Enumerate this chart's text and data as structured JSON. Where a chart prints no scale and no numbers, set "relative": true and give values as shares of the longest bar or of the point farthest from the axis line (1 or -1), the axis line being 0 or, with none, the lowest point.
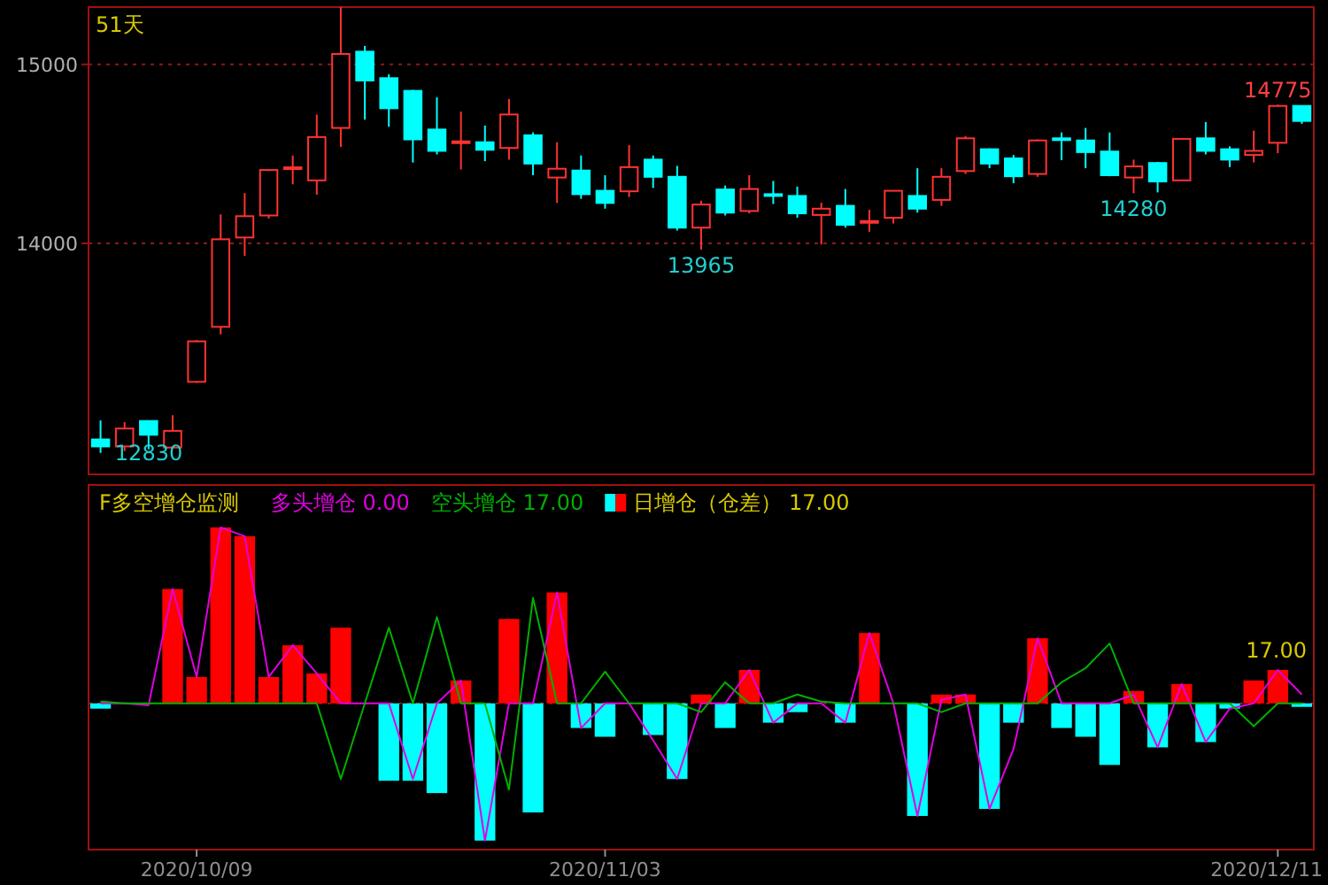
{
  "chart_data": [
    {
      "type": "candlestick",
      "categories": [
        null,
        null,
        null,
        null,
        null,
        null,
        null,
        null,
        null,
        null,
        null,
        null,
        null,
        null,
        null,
        null,
        null,
        null,
        null,
        null,
        null,
        null,
        null,
        null,
        null,
        null,
        null,
        null,
        null,
        null,
        null,
        null,
        null,
        null,
        null,
        null,
        null,
        null,
        null,
        null,
        null,
        null,
        null,
        null,
        null,
        null,
        null,
        null,
        null,
        null,
        null
      ],
      "ohlc": [
        [
          12905,
          13011,
          12830,
          12866
        ],
        [
          12866,
          13002,
          12840,
          12966
        ],
        [
          13008,
          13010,
          12850,
          12931
        ],
        [
          12860,
          13040,
          12855,
          12953
        ],
        [
          13227,
          13460,
          13220,
          13453
        ],
        [
          13534,
          14162,
          13492,
          14023
        ],
        [
          14033,
          14281,
          13930,
          14152
        ],
        [
          14156,
          14415,
          14139,
          14410
        ],
        [
          14420,
          14491,
          14330,
          14425
        ],
        [
          14352,
          14720,
          14272,
          14594
        ],
        [
          14645,
          15320,
          14539,
          15058
        ],
        [
          15071,
          15103,
          14691,
          14910
        ],
        [
          14923,
          14945,
          14652,
          14755
        ],
        [
          14852,
          14858,
          14452,
          14581
        ],
        [
          14636,
          14816,
          14497,
          14517
        ],
        [
          14565,
          14736,
          14413,
          14570
        ],
        [
          14565,
          14658,
          14459,
          14523
        ],
        [
          14533,
          14807,
          14468,
          14720
        ],
        [
          14604,
          14620,
          14381,
          14446
        ],
        [
          14368,
          14565,
          14226,
          14417
        ],
        [
          14407,
          14491,
          14249,
          14275
        ],
        [
          14294,
          14381,
          14194,
          14226
        ],
        [
          14291,
          14549,
          14259,
          14426
        ],
        [
          14468,
          14491,
          14310,
          14372
        ],
        [
          14372,
          14433,
          14072,
          14088
        ],
        [
          14088,
          14239,
          13965,
          14217
        ],
        [
          14301,
          14323,
          14156,
          14172
        ],
        [
          14181,
          14381,
          14168,
          14304
        ],
        [
          14275,
          14349,
          14220,
          14270
        ],
        [
          14265,
          14317,
          14143,
          14168
        ],
        [
          14159,
          14227,
          13994,
          14194
        ],
        [
          14210,
          14304,
          14088,
          14104
        ],
        [
          14120,
          14188,
          14065,
          14125
        ],
        [
          14143,
          14296,
          14111,
          14294
        ],
        [
          14265,
          14420,
          14172,
          14194
        ],
        [
          14243,
          14420,
          14210,
          14372
        ],
        [
          14404,
          14600,
          14388,
          14587
        ],
        [
          14526,
          14530,
          14420,
          14446
        ],
        [
          14475,
          14494,
          14336,
          14375
        ],
        [
          14388,
          14581,
          14372,
          14575
        ],
        [
          14587,
          14620,
          14465,
          14582
        ],
        [
          14575,
          14645,
          14420,
          14510
        ],
        [
          14513,
          14620,
          14375,
          14381
        ],
        [
          14368,
          14468,
          14280,
          14430
        ],
        [
          14449,
          14455,
          14285,
          14346
        ],
        [
          14352,
          14587,
          14350,
          14584
        ],
        [
          14587,
          14678,
          14497,
          14517
        ],
        [
          14526,
          14542,
          14426,
          14468
        ],
        [
          14494,
          14630,
          14452,
          14517
        ],
        [
          14562,
          14775,
          14504,
          14768
        ],
        [
          14768,
          14770,
          14668,
          14684
        ]
      ],
      "colors": [
        "#00ffff",
        "#ff3232",
        "#00ffff",
        "#ff3232",
        "#ff3232",
        "#ff3232",
        "#ff3232",
        "#ff3232",
        "#ff3232",
        "#ff3232",
        "#ff3232",
        "#00ffff",
        "#00ffff",
        "#00ffff",
        "#00ffff",
        "#ff3232",
        "#00ffff",
        "#ff3232",
        "#00ffff",
        "#ff3232",
        "#00ffff",
        "#00ffff",
        "#ff3232",
        "#00ffff",
        "#00ffff",
        "#ff3232",
        "#00ffff",
        "#ff3232",
        "#00ffff",
        "#00ffff",
        "#ff3232",
        "#00ffff",
        "#ff3232",
        "#ff3232",
        "#00ffff",
        "#ff3232",
        "#ff3232",
        "#00ffff",
        "#00ffff",
        "#ff3232",
        "#00ffff",
        "#00ffff",
        "#00ffff",
        "#ff3232",
        "#00ffff",
        "#ff3232",
        "#00ffff",
        "#00ffff",
        "#ff3232",
        "#ff3232",
        "#00ffff"
      ],
      "ylim": [
        12710,
        15320
      ],
      "yticks": [
        14000,
        15000
      ],
      "grid": "y",
      "tick_labels": "y",
      "annotations": [
        {
          "text": "14775",
          "y": 14775
        },
        {
          "text": "13965",
          "y": 13965
        },
        {
          "text": "14280",
          "y": 14280
        },
        {
          "text": "12830",
          "y": 12830
        },
        "51天"
      ]
    },
    {
      "type": "bar",
      "title": "F多空增仓监测",
      "relative": true,
      "legend": "top left",
      "categories": [
        null,
        null,
        null,
        null,
        "2020/10/09",
        null,
        null,
        null,
        null,
        null,
        null,
        null,
        null,
        null,
        null,
        null,
        null,
        null,
        null,
        null,
        null,
        "2020/11/03",
        null,
        null,
        null,
        null,
        null,
        null,
        null,
        null,
        null,
        null,
        null,
        null,
        null,
        null,
        null,
        null,
        null,
        null,
        null,
        null,
        null,
        null,
        null,
        null,
        null,
        null,
        null,
        "2020/12/11",
        null
      ],
      "series": [
        {
          "type": "line",
          "name": "多头增仓 0.00",
          "color": "#e000e0",
          "values": [
            0,
            0,
            -0.01,
            0.65,
            0.15,
            1.0,
            0.95,
            0.15,
            0.33,
            0.17,
            0,
            0,
            0,
            -0.43,
            0,
            0.13,
            -0.78,
            0,
            0,
            0.63,
            -0.14,
            0,
            0,
            -0.21,
            -0.43,
            0,
            0,
            0.19,
            -0.11,
            0,
            0,
            -0.11,
            0.4,
            0,
            -0.64,
            0.02,
            0.05,
            -0.6,
            -0.26,
            0.37,
            0,
            0,
            0,
            0.05,
            -0.25,
            0.11,
            -0.22,
            -0.03,
            0,
            0.19,
            0.05
          ]
        },
        {
          "type": "line",
          "name": "空头增仓 17.00",
          "color": "#00b000",
          "values": [
            0.01,
            0,
            0,
            0,
            0,
            0,
            0,
            0,
            0,
            0,
            -0.43,
            0,
            0.43,
            0,
            0.49,
            0,
            0,
            -0.49,
            0.6,
            0,
            0,
            0.18,
            0,
            0,
            0,
            -0.05,
            0.12,
            0,
            0,
            0.05,
            0.01,
            0,
            0,
            0,
            0,
            -0.05,
            0,
            0,
            0,
            0,
            0.12,
            0.2,
            0.34,
            0,
            0,
            0,
            0,
            0,
            -0.13,
            0,
            0
          ]
        },
        {
          "type": "bar",
          "name": "日增仓（仓差） 17.00",
          "colors": [
            "#00ffff",
            "#ff0000",
            "#00ffff",
            "#ff0000",
            "#ff0000",
            "#ff0000",
            "#ff0000",
            "#ff0000",
            "#ff0000",
            "#ff0000",
            "#ff0000",
            "#ff0000",
            "#00ffff",
            "#00ffff",
            "#00ffff",
            "#ff0000",
            "#00ffff",
            "#ff0000",
            "#00ffff",
            "#ff0000",
            "#00ffff",
            "#00ffff",
            "#ff0000",
            "#00ffff",
            "#00ffff",
            "#ff0000",
            "#00ffff",
            "#ff0000",
            "#00ffff",
            "#00ffff",
            "#ff0000",
            "#00ffff",
            "#ff0000",
            "#ff0000",
            "#00ffff",
            "#ff0000",
            "#ff0000",
            "#00ffff",
            "#00ffff",
            "#ff0000",
            "#00ffff",
            "#00ffff",
            "#00ffff",
            "#ff0000",
            "#00ffff",
            "#ff0000",
            "#00ffff",
            "#00ffff",
            "#ff0000",
            "#ff0000",
            "#00ffff"
          ],
          "values": [
            -0.03,
            0,
            null,
            0.65,
            0.15,
            1.0,
            0.95,
            0.15,
            0.33,
            0.17,
            0.43,
            0,
            -0.44,
            -0.44,
            -0.51,
            0.13,
            -0.78,
            0.48,
            -0.62,
            0.63,
            -0.14,
            -0.19,
            null,
            -0.18,
            -0.43,
            0.05,
            -0.14,
            0.19,
            -0.11,
            -0.05,
            0,
            -0.11,
            0.4,
            0,
            -0.64,
            0.05,
            0.05,
            -0.6,
            -0.11,
            0.37,
            -0.14,
            -0.19,
            -0.35,
            0.07,
            -0.25,
            0.11,
            -0.22,
            -0.03,
            0.13,
            0.19,
            -0.02
          ]
        }
      ],
      "annotations": [
        "17.00"
      ],
      "ref_lines": [
        {
          "axis": "y",
          "value": 0,
          "line_style": "dotted",
          "color": "#8b1a1a"
        }
      ]
    }
  ]
}
